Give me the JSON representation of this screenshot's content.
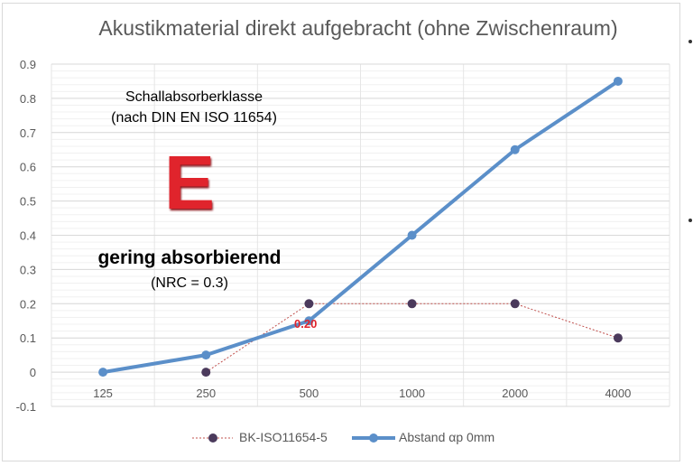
{
  "chart_data": {
    "type": "line",
    "title": "Akustikmaterial direkt aufgebracht (ohne Zwischenraum)",
    "categories": [
      "125",
      "250",
      "500",
      "1000",
      "2000",
      "4000"
    ],
    "ylim": [
      -0.1,
      0.9
    ],
    "yticks": [
      "0.9",
      "0.8",
      "0.7",
      "0.6",
      "0.5",
      "0.4",
      "0.3",
      "0.2",
      "0.1",
      "0",
      "-0.1"
    ],
    "grid": true,
    "legend_position": "bottom",
    "series": [
      {
        "name": "BK-ISO11654-5",
        "color": "#4b3a5c",
        "line_color": "#c0504d",
        "dashed": true,
        "values": [
          null,
          0,
          0.2,
          0.2,
          0.2,
          0.1
        ]
      },
      {
        "name": "Abstand  αp 0mm",
        "color": "#5b8fc9",
        "dashed": false,
        "values": [
          0,
          0.05,
          0.15,
          0.4,
          0.65,
          0.85
        ]
      }
    ],
    "data_labels": [
      {
        "category": "500",
        "text": "0.20",
        "color": "#e0242c"
      }
    ],
    "annotations": {
      "class_heading_1": "Schallabsorberklasse",
      "class_heading_2": "(nach DIN EN ISO 11654)",
      "class_letter": "E",
      "class_desc": "gering absorbierend",
      "nrc": "(NRC = 0.3)"
    }
  }
}
